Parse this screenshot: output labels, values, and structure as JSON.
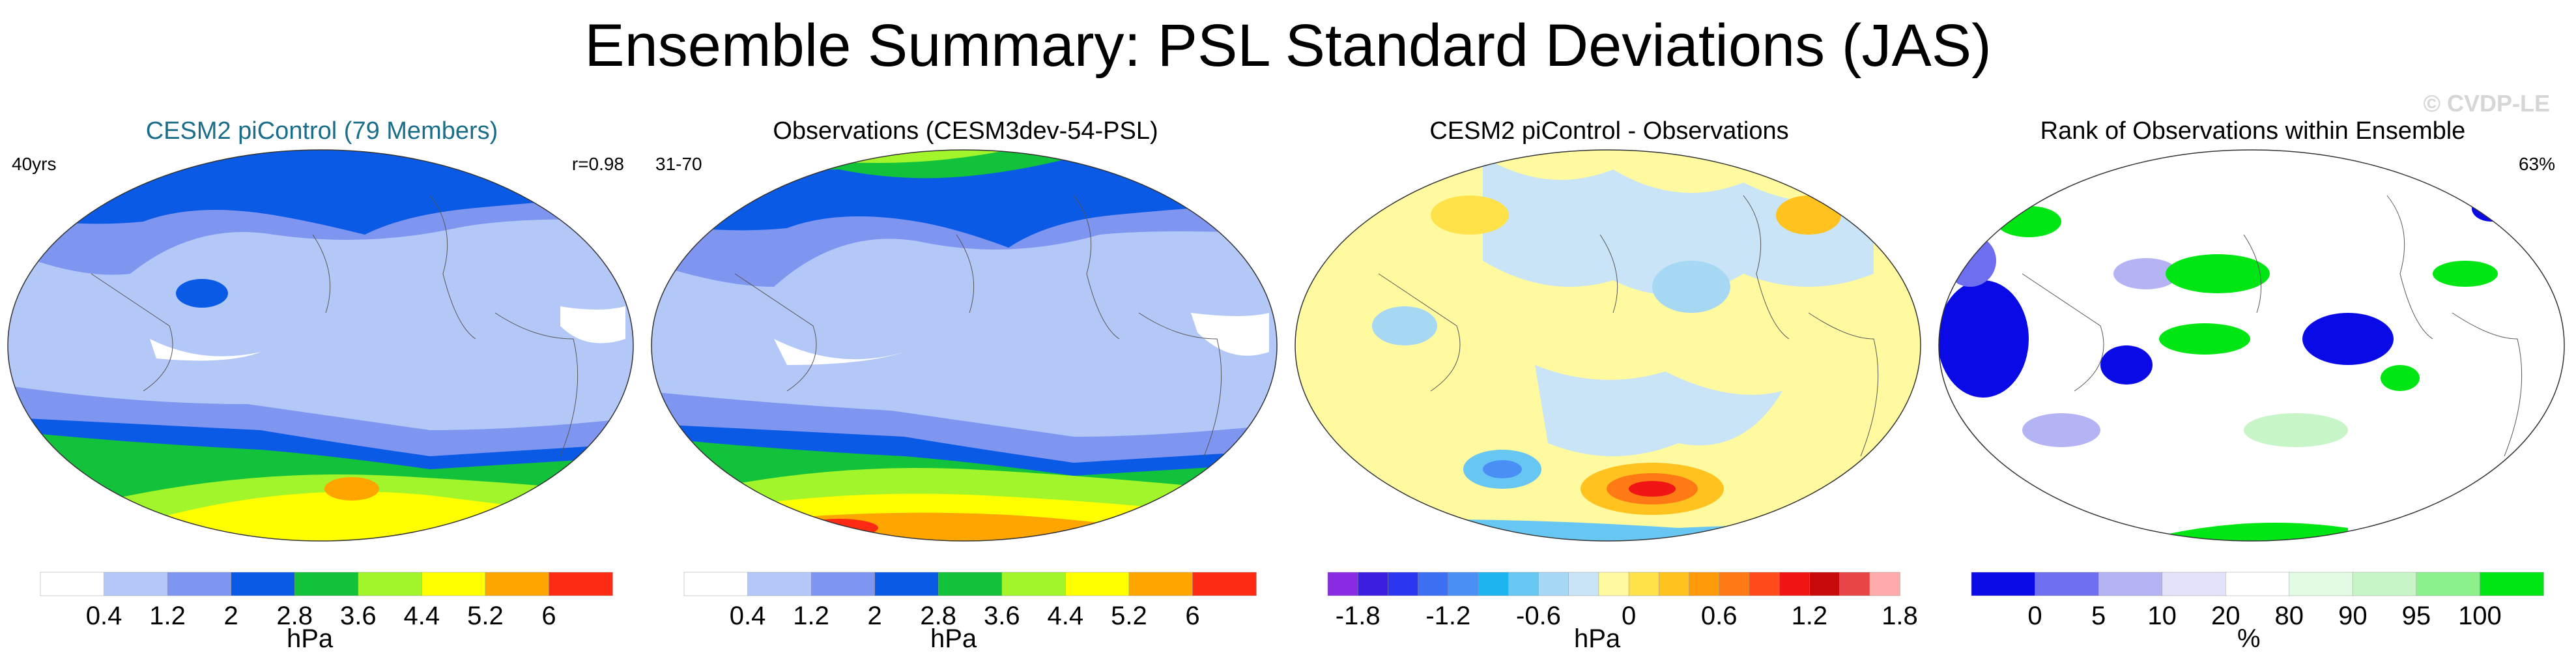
{
  "title": "Ensemble Summary: PSL Standard Deviations (JAS)",
  "watermark": "© CVDP-LE",
  "chart_data": [
    {
      "type": "heatmap",
      "title": "CESM2 piControl (79 Members)",
      "title_color": "#1a6e8a",
      "left_label": "40yrs",
      "right_label": "r=0.98",
      "units": "hPa",
      "colorbar": {
        "colors": [
          "#ffffff",
          "#b4c8f8",
          "#7f96f0",
          "#0a5ae6",
          "#12c23a",
          "#a2f52a",
          "#ffff00",
          "#ffa500",
          "#ff2a14"
        ],
        "tick_labels": [
          "0.4",
          "1.2",
          "2",
          "2.8",
          "3.6",
          "4.4",
          "5.2",
          "6"
        ]
      }
    },
    {
      "type": "heatmap",
      "title": "Observations (CESM3dev-54-PSL)",
      "title_color": "#000000",
      "left_label": "31-70",
      "right_label": "",
      "units": "hPa",
      "colorbar": {
        "colors": [
          "#ffffff",
          "#b4c8f8",
          "#7f96f0",
          "#0a5ae6",
          "#12c23a",
          "#a2f52a",
          "#ffff00",
          "#ffa500",
          "#ff2a14"
        ],
        "tick_labels": [
          "0.4",
          "1.2",
          "2",
          "2.8",
          "3.6",
          "4.4",
          "5.2",
          "6"
        ]
      }
    },
    {
      "type": "heatmap",
      "title": "CESM2 piControl - Observations",
      "title_color": "#000000",
      "left_label": "",
      "right_label": "",
      "units": "hPa",
      "colorbar": {
        "colors": [
          "#8a2be2",
          "#3b1ee0",
          "#2b36f0",
          "#3c6ff2",
          "#4a8ff4",
          "#1eb4f0",
          "#68c6f2",
          "#a6d8f4",
          "#c8e4f6",
          "#fffaa0",
          "#ffe24a",
          "#ffc21e",
          "#ff9a0a",
          "#ff7a14",
          "#ff4a1e",
          "#f01414",
          "#c80a0a",
          "#e84646",
          "#ffaaaa"
        ],
        "tick_labels": [
          "-1.8",
          "-1.2",
          "-0.6",
          "0",
          "0.6",
          "1.2",
          "1.8"
        ]
      }
    },
    {
      "type": "heatmap",
      "title": "Rank of Observations within Ensemble",
      "title_color": "#000000",
      "left_label": "",
      "right_label": "63%",
      "units": "%",
      "colorbar": {
        "colors": [
          "#0a0ae6",
          "#6e6ef0",
          "#b4b4f4",
          "#e2e2fa",
          "#ffffff",
          "#e2fae2",
          "#c8f5c8",
          "#8cf08c",
          "#00e614"
        ],
        "tick_labels": [
          "0",
          "5",
          "10",
          "20",
          "80",
          "90",
          "95",
          "100"
        ]
      }
    }
  ]
}
